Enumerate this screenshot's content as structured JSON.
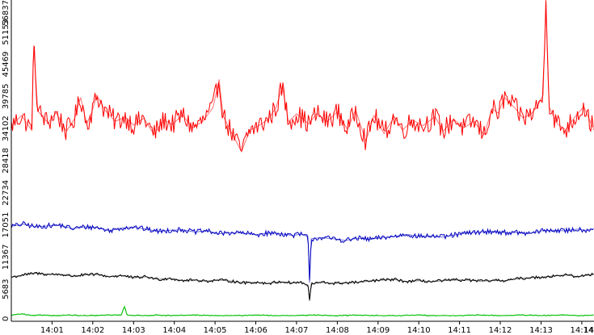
{
  "chart_data": {
    "type": "line",
    "title": "",
    "xlabel": "",
    "ylabel": "",
    "ylim": [
      0,
      56837
    ],
    "xlim": [
      0.0,
      14.3
    ],
    "x_ticks": [
      {
        "x": 1,
        "label": "14:01"
      },
      {
        "x": 2,
        "label": "14:02"
      },
      {
        "x": 3,
        "label": "14:03"
      },
      {
        "x": 4,
        "label": "14:04"
      },
      {
        "x": 5,
        "label": "14:05"
      },
      {
        "x": 6,
        "label": "14:06"
      },
      {
        "x": 7,
        "label": "14:07"
      },
      {
        "x": 8,
        "label": "14:08"
      },
      {
        "x": 9,
        "label": "14:09"
      },
      {
        "x": 10,
        "label": "14:10"
      },
      {
        "x": 11,
        "label": "14:11"
      },
      {
        "x": 12,
        "label": "14:12"
      },
      {
        "x": 13,
        "label": "14:13"
      },
      {
        "x": 14,
        "label": "14:14"
      },
      {
        "x": 14.3,
        "label": "14"
      }
    ],
    "y_ticks": [
      {
        "y": 0,
        "label": "0"
      },
      {
        "y": 5683,
        "label": "5683"
      },
      {
        "y": 11367,
        "label": "11367"
      },
      {
        "y": 17051,
        "label": "17051"
      },
      {
        "y": 22734,
        "label": "22734"
      },
      {
        "y": 28418,
        "label": "28418"
      },
      {
        "y": 34102,
        "label": "34102"
      },
      {
        "y": 39785,
        "label": "39785"
      },
      {
        "y": 45469,
        "label": "45469"
      },
      {
        "y": 51153,
        "label": "51153"
      },
      {
        "y": 56837,
        "label": "56837"
      }
    ],
    "series_colors": [
      "#ff0000",
      "#0000c0",
      "#000000",
      "#00c000"
    ],
    "series": [
      {
        "values": [
          [
            0.0,
            34600
          ],
          [
            0.25,
            36400
          ],
          [
            0.5,
            33800
          ],
          [
            0.55,
            48800
          ],
          [
            0.65,
            37200
          ],
          [
            0.9,
            35100
          ],
          [
            1.1,
            36900
          ],
          [
            1.35,
            33600
          ],
          [
            1.55,
            35800
          ],
          [
            1.7,
            39600
          ],
          [
            1.85,
            34900
          ],
          [
            1.98,
            37100
          ],
          [
            2.1,
            40000
          ],
          [
            2.3,
            37300
          ],
          [
            2.55,
            35400
          ],
          [
            2.8,
            36100
          ],
          [
            3.0,
            34700
          ],
          [
            3.25,
            35900
          ],
          [
            3.5,
            33100
          ],
          [
            3.75,
            35600
          ],
          [
            3.95,
            34800
          ],
          [
            4.2,
            36500
          ],
          [
            4.45,
            34200
          ],
          [
            4.7,
            35400
          ],
          [
            4.95,
            37800
          ],
          [
            5.1,
            42800
          ],
          [
            5.2,
            36300
          ],
          [
            5.4,
            33400
          ],
          [
            5.65,
            30000
          ],
          [
            5.85,
            33800
          ],
          [
            6.05,
            34500
          ],
          [
            6.3,
            35700
          ],
          [
            6.5,
            37800
          ],
          [
            6.65,
            41600
          ],
          [
            6.8,
            35300
          ],
          [
            7.0,
            36700
          ],
          [
            7.3,
            34900
          ],
          [
            7.5,
            36800
          ],
          [
            7.75,
            35300
          ],
          [
            8.0,
            37100
          ],
          [
            8.25,
            33900
          ],
          [
            8.45,
            37400
          ],
          [
            8.7,
            31900
          ],
          [
            8.9,
            36400
          ],
          [
            9.15,
            33200
          ],
          [
            9.4,
            36200
          ],
          [
            9.6,
            33800
          ],
          [
            9.85,
            35600
          ],
          [
            10.1,
            34600
          ],
          [
            10.4,
            36200
          ],
          [
            10.6,
            33600
          ],
          [
            10.85,
            35800
          ],
          [
            11.1,
            34200
          ],
          [
            11.35,
            35400
          ],
          [
            11.6,
            33000
          ],
          [
            11.8,
            37600
          ],
          [
            11.95,
            36800
          ],
          [
            12.1,
            39600
          ],
          [
            12.35,
            37800
          ],
          [
            12.55,
            36000
          ],
          [
            12.75,
            36600
          ],
          [
            12.9,
            37900
          ],
          [
            13.05,
            40000
          ],
          [
            13.12,
            58000
          ],
          [
            13.2,
            37900
          ],
          [
            13.4,
            34900
          ],
          [
            13.6,
            33900
          ],
          [
            13.85,
            36300
          ],
          [
            14.05,
            38000
          ],
          [
            14.3,
            33800
          ]
        ]
      },
      {
        "values": [
          [
            0.0,
            16800
          ],
          [
            0.3,
            17200
          ],
          [
            0.6,
            16700
          ],
          [
            0.9,
            16900
          ],
          [
            1.2,
            17000
          ],
          [
            1.5,
            16400
          ],
          [
            1.8,
            16700
          ],
          [
            2.1,
            16600
          ],
          [
            2.4,
            16000
          ],
          [
            2.7,
            16500
          ],
          [
            3.0,
            16700
          ],
          [
            3.3,
            16300
          ],
          [
            3.6,
            15900
          ],
          [
            3.9,
            16100
          ],
          [
            4.2,
            16200
          ],
          [
            4.5,
            15800
          ],
          [
            4.8,
            16000
          ],
          [
            5.1,
            15500
          ],
          [
            5.4,
            15700
          ],
          [
            5.7,
            15600
          ],
          [
            6.0,
            15300
          ],
          [
            6.3,
            15600
          ],
          [
            6.6,
            15500
          ],
          [
            6.9,
            15200
          ],
          [
            7.1,
            15400
          ],
          [
            7.28,
            15000
          ],
          [
            7.32,
            6800
          ],
          [
            7.36,
            14600
          ],
          [
            7.6,
            14800
          ],
          [
            7.9,
            14600
          ],
          [
            8.2,
            14300
          ],
          [
            8.5,
            14700
          ],
          [
            8.8,
            14500
          ],
          [
            9.1,
            14800
          ],
          [
            9.4,
            15000
          ],
          [
            9.7,
            15400
          ],
          [
            10.0,
            15000
          ],
          [
            10.3,
            15100
          ],
          [
            10.6,
            14900
          ],
          [
            10.9,
            15300
          ],
          [
            11.2,
            15600
          ],
          [
            11.5,
            15800
          ],
          [
            11.8,
            15900
          ],
          [
            12.1,
            15700
          ],
          [
            12.4,
            15700
          ],
          [
            12.7,
            15500
          ],
          [
            13.0,
            16000
          ],
          [
            13.3,
            16100
          ],
          [
            13.6,
            16000
          ],
          [
            13.9,
            16300
          ],
          [
            14.1,
            16100
          ],
          [
            14.3,
            16400
          ]
        ]
      },
      {
        "values": [
          [
            0.0,
            7800
          ],
          [
            0.3,
            8200
          ],
          [
            0.6,
            8500
          ],
          [
            0.9,
            8300
          ],
          [
            1.2,
            8300
          ],
          [
            1.5,
            8000
          ],
          [
            1.8,
            8200
          ],
          [
            2.1,
            8300
          ],
          [
            2.4,
            7900
          ],
          [
            2.7,
            8100
          ],
          [
            3.0,
            7700
          ],
          [
            3.3,
            7900
          ],
          [
            3.6,
            7400
          ],
          [
            3.9,
            7600
          ],
          [
            4.2,
            7200
          ],
          [
            4.5,
            7300
          ],
          [
            4.8,
            7100
          ],
          [
            5.1,
            7300
          ],
          [
            5.4,
            7100
          ],
          [
            5.7,
            6800
          ],
          [
            6.0,
            6900
          ],
          [
            6.3,
            6700
          ],
          [
            6.6,
            7000
          ],
          [
            6.9,
            6800
          ],
          [
            7.1,
            6900
          ],
          [
            7.28,
            6400
          ],
          [
            7.32,
            3600
          ],
          [
            7.36,
            6600
          ],
          [
            7.6,
            6900
          ],
          [
            7.9,
            6700
          ],
          [
            8.2,
            6800
          ],
          [
            8.5,
            6900
          ],
          [
            8.8,
            7100
          ],
          [
            9.1,
            7300
          ],
          [
            9.4,
            7400
          ],
          [
            9.7,
            7000
          ],
          [
            10.0,
            7200
          ],
          [
            10.3,
            7000
          ],
          [
            10.6,
            7200
          ],
          [
            10.9,
            7300
          ],
          [
            11.2,
            7300
          ],
          [
            11.5,
            7100
          ],
          [
            11.8,
            7200
          ],
          [
            12.1,
            7200
          ],
          [
            12.4,
            7500
          ],
          [
            12.7,
            7700
          ],
          [
            13.0,
            7800
          ],
          [
            13.3,
            8000
          ],
          [
            13.6,
            8200
          ],
          [
            13.9,
            7900
          ],
          [
            14.1,
            8100
          ],
          [
            14.3,
            8400
          ]
        ]
      },
      {
        "values": [
          [
            0.0,
            1100
          ],
          [
            0.25,
            1300
          ],
          [
            0.5,
            1000
          ],
          [
            0.8,
            1100
          ],
          [
            1.1,
            1000
          ],
          [
            1.4,
            1100
          ],
          [
            1.7,
            1000
          ],
          [
            2.0,
            1000
          ],
          [
            2.4,
            1100
          ],
          [
            2.7,
            1100
          ],
          [
            2.78,
            2700
          ],
          [
            2.84,
            1100
          ],
          [
            3.2,
            1000
          ],
          [
            3.6,
            1100
          ],
          [
            4.0,
            1000
          ],
          [
            4.5,
            1100
          ],
          [
            5.0,
            1000
          ],
          [
            5.5,
            1000
          ],
          [
            6.0,
            1100
          ],
          [
            6.5,
            1000
          ],
          [
            7.0,
            1000
          ],
          [
            7.5,
            1100
          ],
          [
            8.0,
            1000
          ],
          [
            8.5,
            1100
          ],
          [
            9.0,
            1000
          ],
          [
            9.5,
            1000
          ],
          [
            10.0,
            1100
          ],
          [
            10.5,
            1000
          ],
          [
            11.0,
            1000
          ],
          [
            11.5,
            1100
          ],
          [
            12.0,
            1000
          ],
          [
            12.5,
            1100
          ],
          [
            13.0,
            1000
          ],
          [
            13.5,
            1100
          ],
          [
            14.0,
            1000
          ],
          [
            14.3,
            1100
          ]
        ]
      }
    ]
  }
}
